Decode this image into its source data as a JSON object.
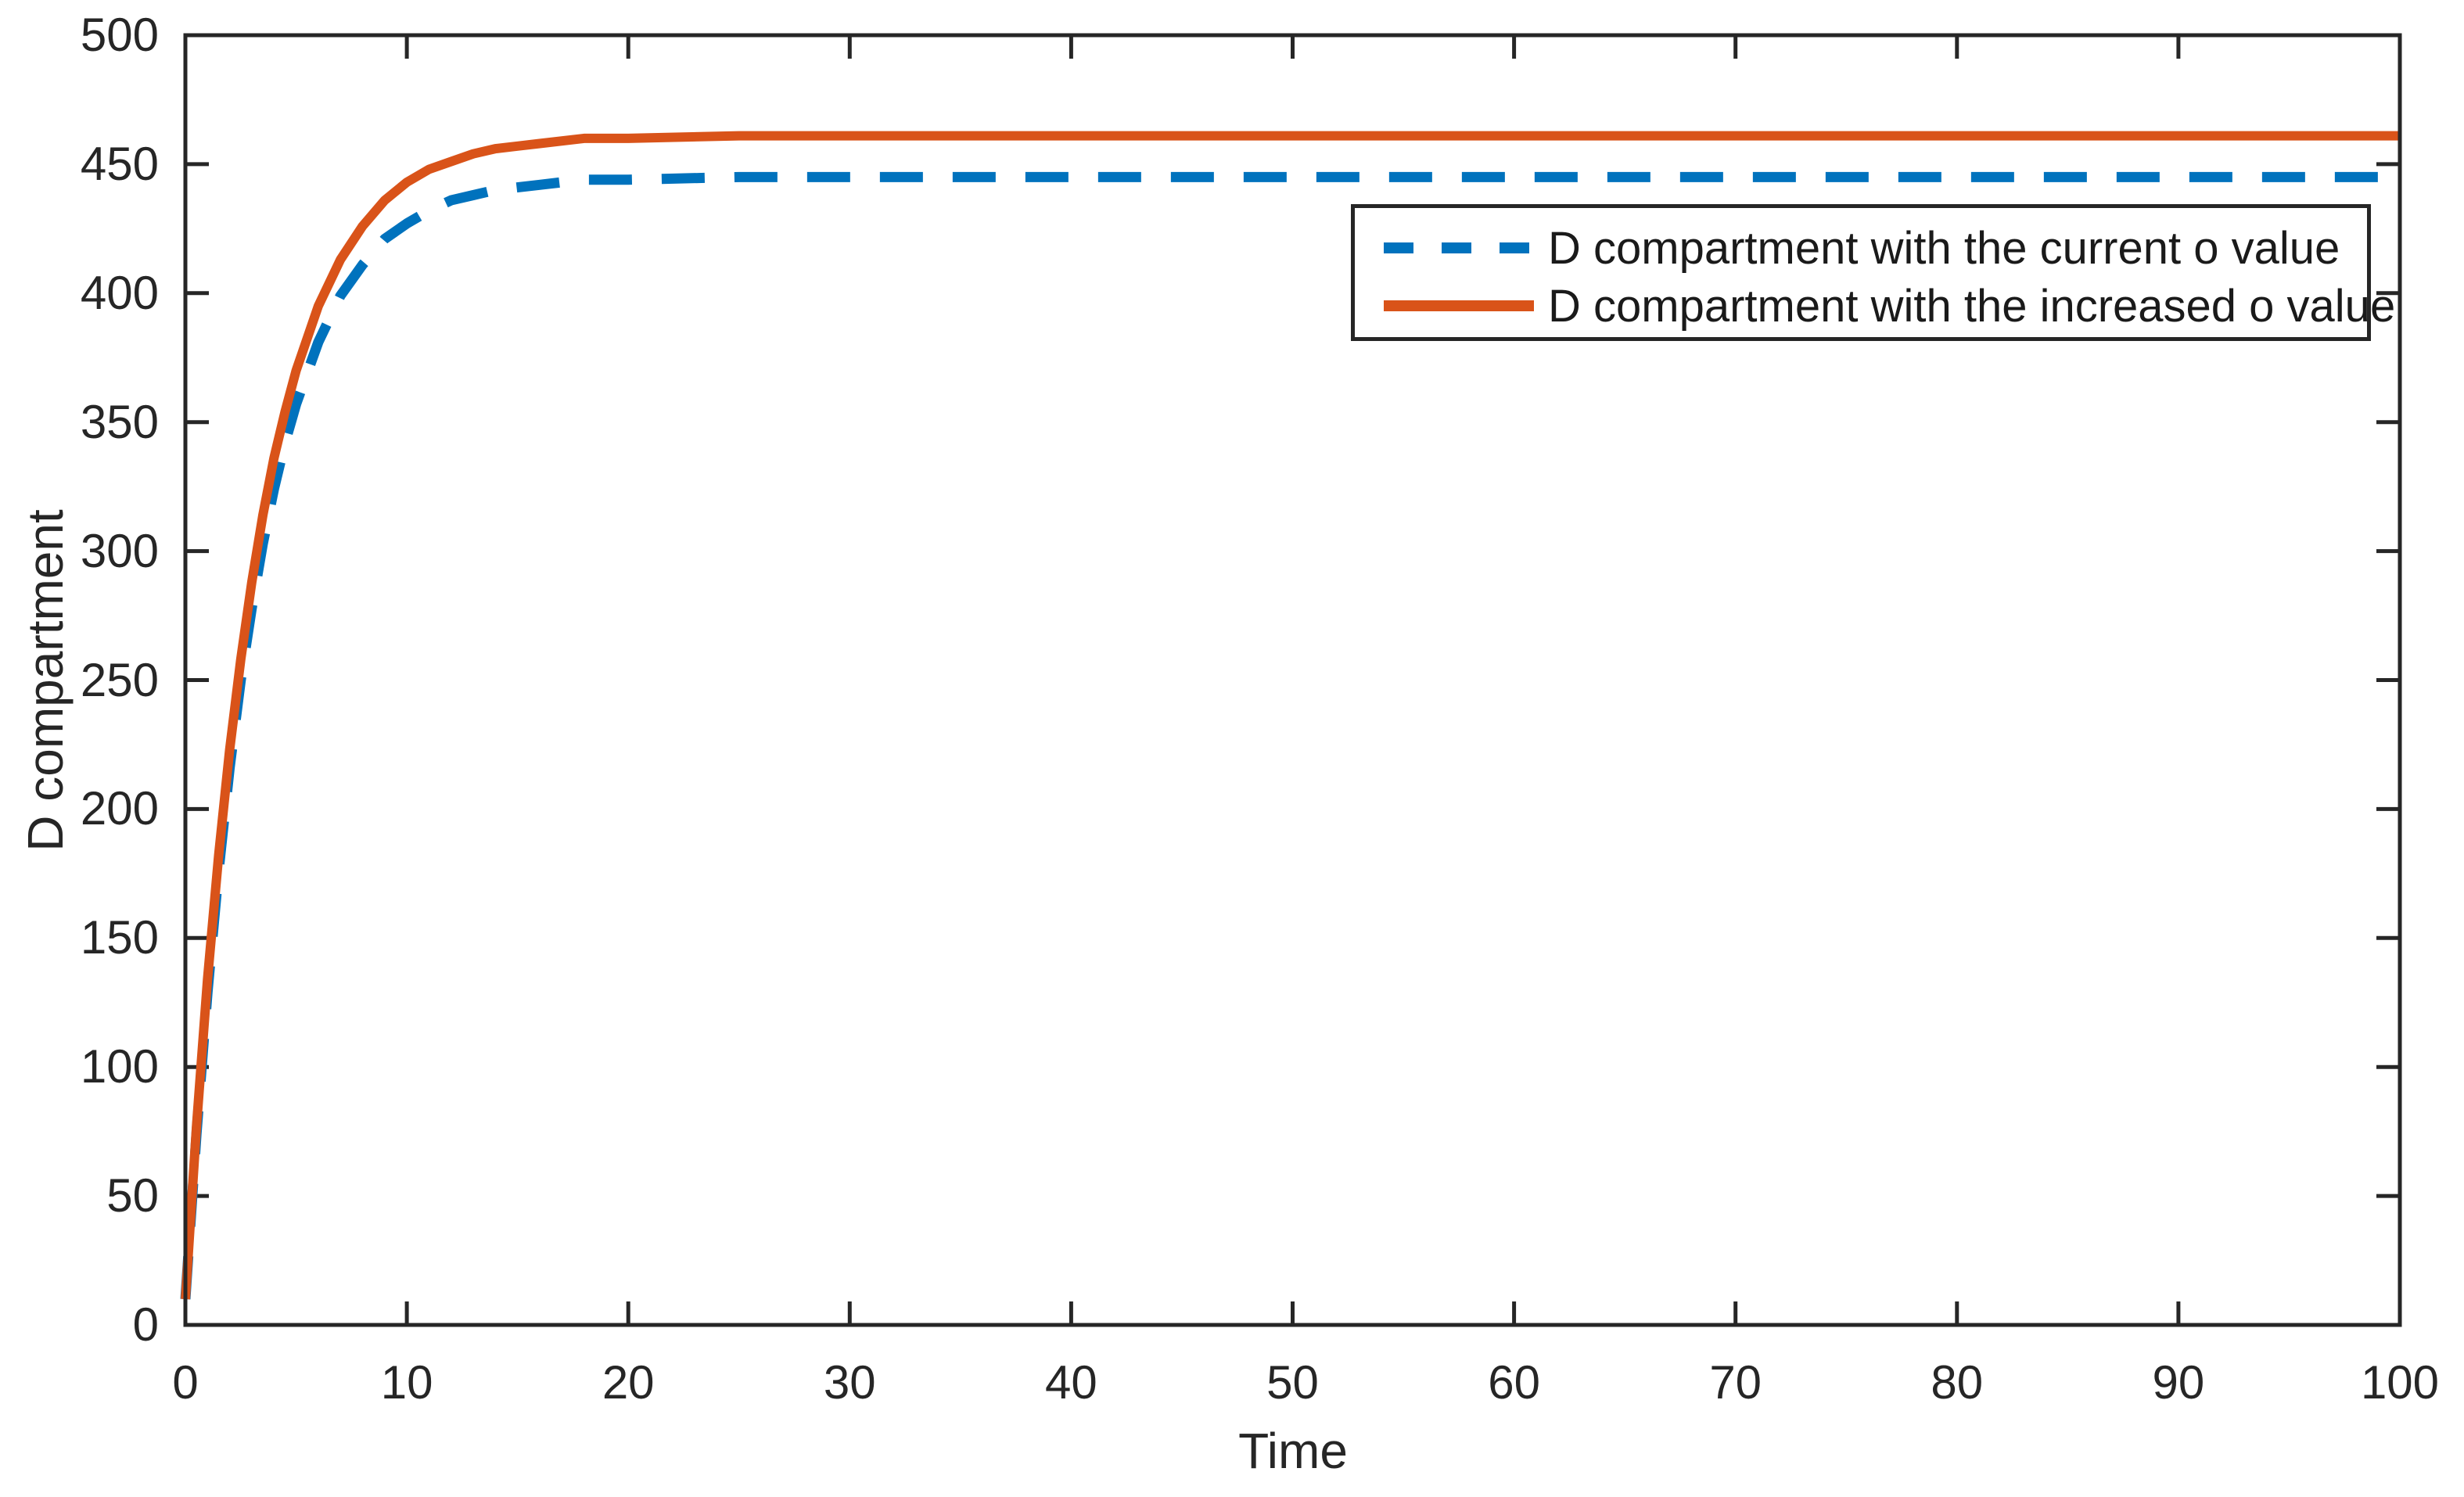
{
  "chart_data": {
    "type": "line",
    "title": "",
    "xlabel": "Time",
    "ylabel": "D compartment",
    "xlim": [
      0,
      100
    ],
    "ylim": [
      0,
      500
    ],
    "x_ticks": [
      0,
      10,
      20,
      30,
      40,
      50,
      60,
      70,
      80,
      90,
      100
    ],
    "y_ticks": [
      0,
      50,
      100,
      150,
      200,
      250,
      300,
      350,
      400,
      450,
      500
    ],
    "grid": false,
    "legend_position": "upper-right-inside",
    "axis_color": "#262626",
    "background_color": "#ffffff",
    "series": [
      {
        "label": "D compartment with the current o value",
        "color": "#0072BD",
        "style": "dashed",
        "steady_state": 445,
        "points": [
          [
            0,
            10
          ],
          [
            0.5,
            74
          ],
          [
            1,
            129
          ],
          [
            1.5,
            176
          ],
          [
            2,
            216
          ],
          [
            2.5,
            250
          ],
          [
            3,
            278
          ],
          [
            3.5,
            303
          ],
          [
            4,
            324
          ],
          [
            4.5,
            342
          ],
          [
            5,
            357
          ],
          [
            6,
            381
          ],
          [
            7,
            399
          ],
          [
            8,
            411
          ],
          [
            9,
            421
          ],
          [
            10,
            427
          ],
          [
            11,
            432
          ],
          [
            12,
            436
          ],
          [
            13,
            438
          ],
          [
            14,
            440
          ],
          [
            15,
            441
          ],
          [
            16,
            442
          ],
          [
            18,
            444
          ],
          [
            20,
            444
          ],
          [
            25,
            445
          ],
          [
            30,
            445
          ],
          [
            40,
            445
          ],
          [
            50,
            445
          ],
          [
            60,
            445
          ],
          [
            70,
            445
          ],
          [
            80,
            445
          ],
          [
            90,
            445
          ],
          [
            100,
            445
          ]
        ]
      },
      {
        "label": "D compartment with the increased o value",
        "color": "#D95319",
        "style": "solid",
        "steady_state": 461,
        "points": [
          [
            0,
            10
          ],
          [
            0.5,
            77
          ],
          [
            1,
            134
          ],
          [
            1.5,
            182
          ],
          [
            2,
            223
          ],
          [
            2.5,
            258
          ],
          [
            3,
            288
          ],
          [
            3.5,
            314
          ],
          [
            4,
            336
          ],
          [
            4.5,
            354
          ],
          [
            5,
            370
          ],
          [
            6,
            395
          ],
          [
            7,
            413
          ],
          [
            8,
            426
          ],
          [
            9,
            436
          ],
          [
            10,
            443
          ],
          [
            11,
            448
          ],
          [
            12,
            451
          ],
          [
            13,
            454
          ],
          [
            14,
            456
          ],
          [
            15,
            457
          ],
          [
            16,
            458
          ],
          [
            18,
            460
          ],
          [
            20,
            460
          ],
          [
            25,
            461
          ],
          [
            30,
            461
          ],
          [
            40,
            461
          ],
          [
            50,
            461
          ],
          [
            60,
            461
          ],
          [
            70,
            461
          ],
          [
            80,
            461
          ],
          [
            90,
            461
          ],
          [
            100,
            461
          ]
        ]
      }
    ]
  }
}
